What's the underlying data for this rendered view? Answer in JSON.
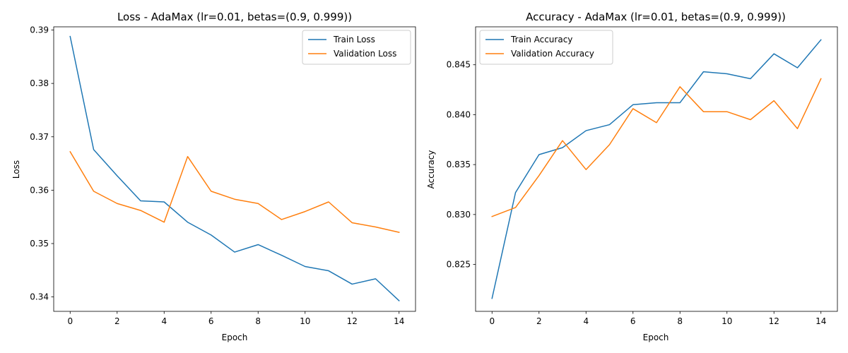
{
  "colors": {
    "train": "#1f77b4",
    "validation": "#ff7f0e"
  },
  "chart_data": [
    {
      "type": "line",
      "title": "Loss - AdaMax (lr=0.01, betas=(0.9, 0.999))",
      "xlabel": "Epoch",
      "ylabel": "Loss",
      "x": [
        0,
        1,
        2,
        3,
        4,
        5,
        6,
        7,
        8,
        9,
        10,
        11,
        12,
        13,
        14
      ],
      "xlim": [
        -0.7,
        14.7
      ],
      "ylim": [
        0.3373,
        0.3906
      ],
      "xticks": [
        0,
        2,
        4,
        6,
        8,
        10,
        12,
        14
      ],
      "yticks": [
        0.34,
        0.35,
        0.36,
        0.37,
        0.38,
        0.39
      ],
      "ytick_labels": [
        "0.34",
        "0.35",
        "0.36",
        "0.37",
        "0.38",
        "0.39"
      ],
      "legend": "top-right",
      "grid": false,
      "series": [
        {
          "name": "Train Loss",
          "color": "#1f77b4",
          "values": [
            0.3888,
            0.3676,
            0.3627,
            0.358,
            0.3578,
            0.354,
            0.3516,
            0.3484,
            0.3498,
            0.3478,
            0.3457,
            0.3449,
            0.3424,
            0.3434,
            0.3393
          ]
        },
        {
          "name": "Validation Loss",
          "color": "#ff7f0e",
          "values": [
            0.3672,
            0.3598,
            0.3575,
            0.3562,
            0.354,
            0.3663,
            0.3598,
            0.3583,
            0.3575,
            0.3545,
            0.356,
            0.3578,
            0.3539,
            0.3531,
            0.3521
          ]
        }
      ]
    },
    {
      "type": "line",
      "title": "Accuracy - AdaMax (lr=0.01, betas=(0.9, 0.999))",
      "xlabel": "Epoch",
      "ylabel": "Accuracy",
      "x": [
        0,
        1,
        2,
        3,
        4,
        5,
        6,
        7,
        8,
        9,
        10,
        11,
        12,
        13,
        14
      ],
      "xlim": [
        -0.7,
        14.7
      ],
      "ylim": [
        0.8203,
        0.8488
      ],
      "xticks": [
        0,
        2,
        4,
        6,
        8,
        10,
        12,
        14
      ],
      "yticks": [
        0.825,
        0.83,
        0.835,
        0.84,
        0.845
      ],
      "ytick_labels": [
        "0.825",
        "0.830",
        "0.835",
        "0.840",
        "0.845"
      ],
      "legend": "top-left",
      "grid": false,
      "series": [
        {
          "name": "Train Accuracy",
          "color": "#1f77b4",
          "values": [
            0.8216,
            0.8322,
            0.836,
            0.8367,
            0.8384,
            0.839,
            0.841,
            0.8412,
            0.8412,
            0.8443,
            0.8441,
            0.8436,
            0.8461,
            0.8447,
            0.8475
          ]
        },
        {
          "name": "Validation Accuracy",
          "color": "#ff7f0e",
          "values": [
            0.8298,
            0.8307,
            0.8339,
            0.8374,
            0.8345,
            0.837,
            0.8406,
            0.8392,
            0.8428,
            0.8403,
            0.8403,
            0.8395,
            0.8414,
            0.8386,
            0.8436
          ]
        }
      ]
    }
  ]
}
